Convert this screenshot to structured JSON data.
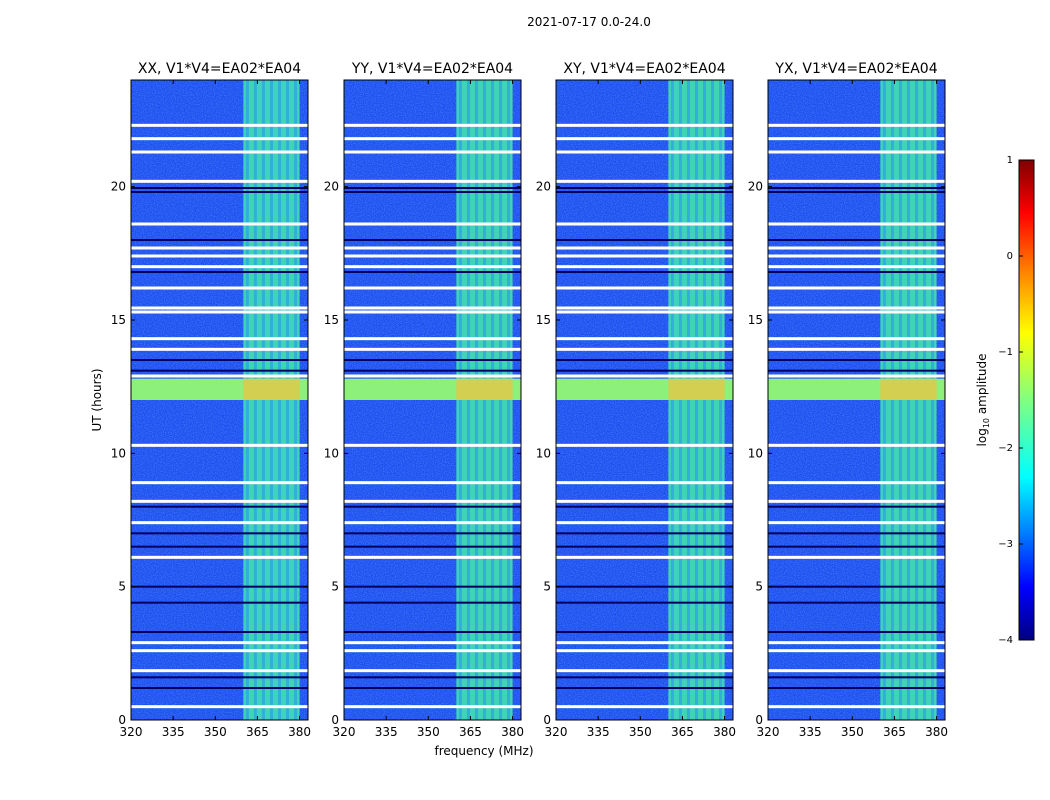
{
  "figure": {
    "suptitle": "2021-07-17 0.0-24.0"
  },
  "chart_data": {
    "type": "heatmap",
    "title": "2021-07-17 0.0-24.0",
    "xlabel": "frequency (MHz)",
    "ylabel": "UT (hours)",
    "xlim": [
      320,
      383
    ],
    "ylim": [
      0,
      24
    ],
    "x_ticks": [
      320,
      335,
      350,
      365,
      380
    ],
    "y_ticks": [
      0,
      5,
      10,
      15,
      20
    ],
    "panels": [
      {
        "title": "XX, V1*V4=EA02*EA04"
      },
      {
        "title": "YY, V1*V4=EA02*EA04"
      },
      {
        "title": "XY, V1*V4=EA02*EA04"
      },
      {
        "title": "YX, V1*V4=EA02*EA04"
      }
    ],
    "rfi_band_mhz": [
      360,
      380
    ],
    "bright_interval_ut": [
      12.0,
      12.8
    ],
    "blank_rows_ut": [
      0.5,
      1.85,
      2.6,
      2.9,
      6.1,
      7.4,
      8.2,
      8.9,
      10.3,
      12.9,
      13.9,
      14.3,
      15.3,
      15.45,
      16.2,
      17.0,
      17.4,
      17.7,
      18.6,
      20.2,
      21.3,
      21.8,
      22.3
    ],
    "dark_rows_ut": [
      1.2,
      1.6,
      3.3,
      4.4,
      5.0,
      6.5,
      7.0,
      8.0,
      13.1,
      13.5,
      16.8,
      18.0,
      19.8,
      19.95
    ],
    "colorbar": {
      "label": "log10 amplitude",
      "label_main": "log",
      "label_sub": "10",
      "label_rest": " amplitude",
      "range": [
        -4,
        1
      ],
      "ticks": [
        "1",
        "0",
        "−1",
        "−2",
        "−3",
        "−4"
      ],
      "tick_values": [
        1,
        0,
        -1,
        -2,
        -3,
        -4
      ],
      "colors": [
        "#000080",
        "#0000ff",
        "#0080ff",
        "#00ffff",
        "#80ff80",
        "#ffff00",
        "#ff8000",
        "#ff0000",
        "#800000"
      ]
    }
  }
}
